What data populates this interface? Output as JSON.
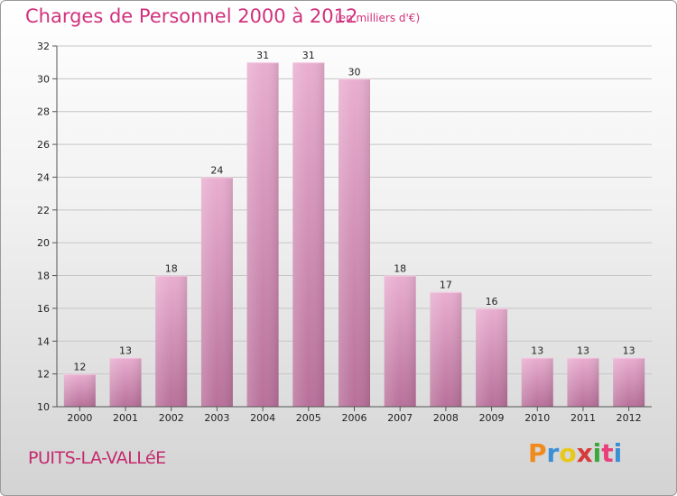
{
  "header": {
    "title": "Charges de Personnel 2000 à 2012",
    "subtitle": "(en milliers d'€)"
  },
  "footer": {
    "commune": "PUITS-LA-VALLéE",
    "logo_text": "Proxiti",
    "logo_colors": [
      "#f08a1c",
      "#3a8fd6",
      "#e8c81a",
      "#d63a3a",
      "#3aa83a",
      "#e8407a",
      "#3a8fd6"
    ]
  },
  "colors": {
    "bar": "#c97aa3",
    "bar_light": "#e6a9c9",
    "axis": "#444444",
    "grid": "#c8c8c8",
    "title": "#d1317c"
  },
  "chart_data": {
    "type": "bar",
    "title": "Charges de Personnel 2000 à 2012",
    "subtitle": "(en milliers d'€)",
    "categories": [
      "2000",
      "2001",
      "2002",
      "2003",
      "2004",
      "2005",
      "2006",
      "2007",
      "2008",
      "2009",
      "2010",
      "2011",
      "2012"
    ],
    "values": [
      12,
      13,
      18,
      24,
      31,
      31,
      30,
      18,
      17,
      16,
      13,
      13,
      13
    ],
    "ylim": [
      10,
      32
    ],
    "yticks": [
      10,
      12,
      14,
      16,
      18,
      20,
      22,
      24,
      26,
      28,
      30,
      32
    ],
    "xlabel": "",
    "ylabel": "",
    "grid": true,
    "legend": "none"
  }
}
